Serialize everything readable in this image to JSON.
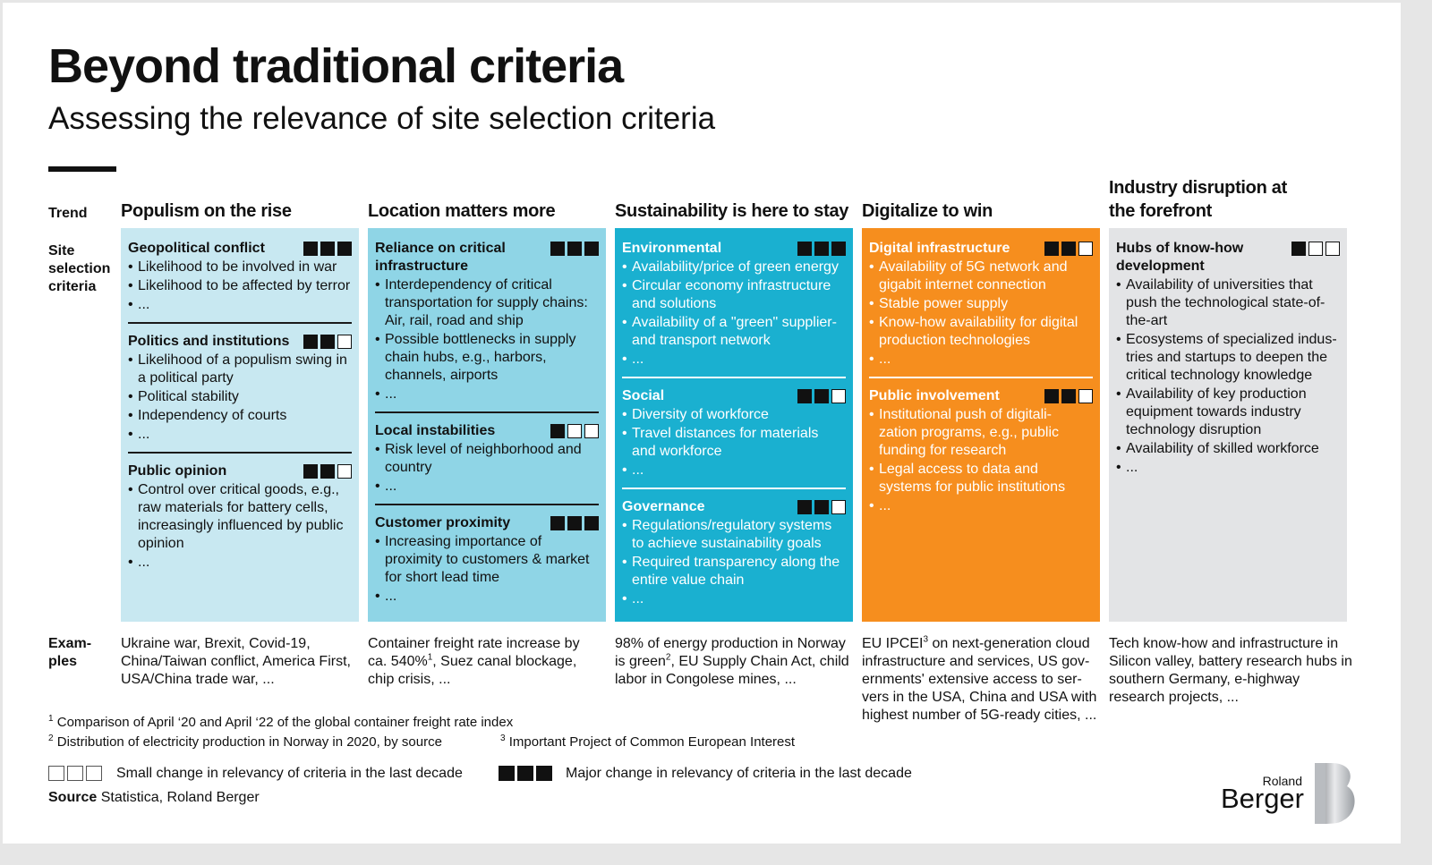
{
  "title": "Beyond traditional criteria",
  "subtitle": "Assessing the relevance of site selection criteria",
  "row_labels": {
    "trend": "Trend",
    "site": "Site selection criteria",
    "examples": "Exam- ples"
  },
  "columns": [
    {
      "trend": "Populism on the rise",
      "criteria": [
        {
          "name": "Geopolitical conflict",
          "level": 3,
          "items": [
            "Likelihood to be involved in war",
            "Likelihood to be affected by terror",
            "..."
          ]
        },
        {
          "name": "Politics and institutions",
          "level": 2,
          "items": [
            "Likelihood of a populism swing in a political party",
            "Political stability",
            "Independency of courts",
            "..."
          ]
        },
        {
          "name": "Public opinion",
          "level": 2,
          "items": [
            "Control over critical goods, e.g., raw materials for battery cells, increasingly influenced by public opinion",
            "..."
          ]
        }
      ],
      "example": "Ukraine war, Brexit, Covid-19, China/Taiwan conflict, America First, USA/China trade war, ..."
    },
    {
      "trend": "Location matters more",
      "criteria": [
        {
          "name": "Reliance on critical infrastructure",
          "level": 3,
          "items": [
            "Interdependency of critical transportation for supply chains: Air, rail, road and ship",
            "Possible bottlenecks in supply chain hubs, e.g., harbors, channels, airports",
            "..."
          ]
        },
        {
          "name": "Local instabilities",
          "level": 1,
          "items": [
            "Risk level of neighborhood and country",
            "..."
          ]
        },
        {
          "name": "Customer proximity",
          "level": 3,
          "items": [
            "Increasing importance of proximity to customers & market for short lead time",
            "..."
          ]
        }
      ],
      "example_pre": "Container freight rate increase by ca. 540%",
      "example_sup": "1",
      "example_post": ", Suez canal blockage, chip crisis, ..."
    },
    {
      "trend": "Sustainability is here to stay",
      "criteria": [
        {
          "name": "Environmental",
          "level": 3,
          "items": [
            "Availability/price of green energy",
            "Circular economy infrastructure and solutions",
            "Availability of a \"green\" supplier- and transport network",
            "..."
          ]
        },
        {
          "name": "Social",
          "level": 2,
          "items": [
            "Diversity of workforce",
            "Travel distances for materials and workforce",
            "..."
          ]
        },
        {
          "name": "Governance",
          "level": 2,
          "items": [
            "Regulations/regulatory systems to achieve sustainability goals",
            "Required transparency along the entire value chain",
            "..."
          ]
        }
      ],
      "example_pre": "98% of energy production in Norway is green",
      "example_sup": "2",
      "example_post": ", EU Supply Chain Act, child labor in Congolese mines, ..."
    },
    {
      "trend": "Digitalize to win",
      "criteria": [
        {
          "name": "Digital infrastructure",
          "level": 2,
          "items": [
            "Availability of 5G network and gigabit internet connection",
            "Stable power supply",
            "Know-how availability for digital production technologies",
            "..."
          ]
        },
        {
          "name": "Public involvement",
          "level": 2,
          "items": [
            "Institutional push of digitali- zation programs, e.g., public funding for research",
            "Legal access to data and systems for public institutions",
            "..."
          ]
        }
      ],
      "example_pre": "EU IPCEI",
      "example_sup": "3",
      "example_post": " on next-generation cloud infrastructure and services, US gov- ernments' extensive access to ser- vers in the USA, China and USA with highest number of 5G-ready cities, ..."
    },
    {
      "trend": "Industry disruption at the forefront",
      "criteria": [
        {
          "name": "Hubs of know-how development",
          "level": 1,
          "items": [
            "Availability of universities that push the technological state-of- the-art",
            "Ecosystems of specialized indus- tries and startups to deepen the critical technology knowledge",
            "Availability of key production equipment towards industry technology disruption",
            "Availability of skilled workforce",
            "..."
          ]
        }
      ],
      "example": "Tech know-how and infrastructure in Silicon valley, battery research hubs in southern Germany, e-highway research projects, ..."
    }
  ],
  "footnotes": {
    "f1_num": "1",
    "f1": "Comparison of April ‘20 and April ‘22 of the global container freight rate index",
    "f2_num": "2",
    "f2": "Distribution of electricity production in Norway in 2020, by source",
    "f3_num": "3",
    "f3": "Important Project of Common European Interest"
  },
  "legend": {
    "small": "Small change in relevancy of criteria in the last decade",
    "major": "Major change in relevancy of criteria in the last decade"
  },
  "source": {
    "label": "Source",
    "text": "Statistica, Roland Berger"
  },
  "logo": {
    "line1": "Roland",
    "line2": "Berger"
  },
  "colors": {
    "c0": "#c8e8f1",
    "c1": "#8fd5e6",
    "c2": "#1ab0d0",
    "c3": "#f68e1e",
    "c4": "#e3e4e6"
  }
}
